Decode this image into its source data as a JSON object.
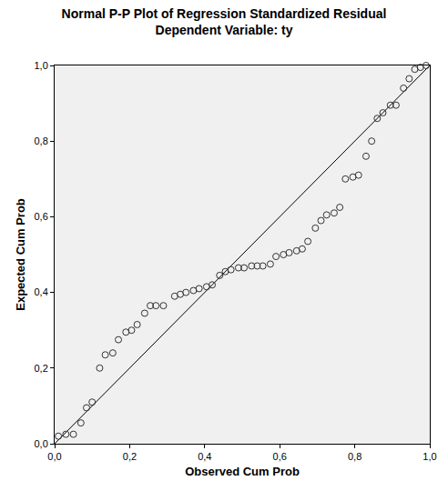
{
  "chart_data": {
    "type": "scatter",
    "title": "Normal P-P Plot of Regression Standardized Residual",
    "subtitle": "Dependent Variable: ty",
    "x_label": "Observed Cum Prob",
    "y_label": "Expected Cum Prob",
    "x": [
      0.01,
      0.03,
      0.05,
      0.07,
      0.085,
      0.1,
      0.12,
      0.135,
      0.155,
      0.17,
      0.19,
      0.205,
      0.22,
      0.24,
      0.255,
      0.27,
      0.29,
      0.32,
      0.335,
      0.35,
      0.37,
      0.385,
      0.405,
      0.42,
      0.44,
      0.455,
      0.47,
      0.49,
      0.505,
      0.525,
      0.54,
      0.555,
      0.575,
      0.59,
      0.61,
      0.625,
      0.645,
      0.66,
      0.675,
      0.695,
      0.71,
      0.725,
      0.745,
      0.76,
      0.775,
      0.795,
      0.81,
      0.83,
      0.845,
      0.86,
      0.875,
      0.895,
      0.91,
      0.93,
      0.945,
      0.96,
      0.975,
      0.99
    ],
    "values": [
      0.02,
      0.025,
      0.025,
      0.055,
      0.095,
      0.11,
      0.2,
      0.235,
      0.24,
      0.275,
      0.295,
      0.3,
      0.315,
      0.345,
      0.365,
      0.365,
      0.365,
      0.39,
      0.395,
      0.4,
      0.405,
      0.41,
      0.415,
      0.42,
      0.445,
      0.455,
      0.46,
      0.465,
      0.465,
      0.47,
      0.47,
      0.47,
      0.475,
      0.495,
      0.5,
      0.505,
      0.51,
      0.515,
      0.535,
      0.57,
      0.59,
      0.605,
      0.61,
      0.625,
      0.7,
      0.705,
      0.71,
      0.76,
      0.8,
      0.86,
      0.875,
      0.895,
      0.895,
      0.94,
      0.965,
      0.99,
      0.995,
      1.0
    ],
    "reference_line": {
      "x": [
        0,
        1
      ],
      "y": [
        0,
        1
      ]
    },
    "marker": "circle-open",
    "color": "#333333",
    "xlim": [
      0,
      1
    ],
    "ylim": [
      0,
      1
    ],
    "xticks": [
      {
        "value": 0,
        "label": "0,0"
      },
      {
        "value": 0.2,
        "label": "0,2"
      },
      {
        "value": 0.4,
        "label": "0,4"
      },
      {
        "value": 0.6,
        "label": "0,6"
      },
      {
        "value": 0.8,
        "label": "0,8"
      },
      {
        "value": 1,
        "label": "1,0"
      }
    ],
    "yticks": [
      {
        "value": 0,
        "label": "0,0"
      },
      {
        "value": 0.2,
        "label": "0,2"
      },
      {
        "value": 0.4,
        "label": "0,4"
      },
      {
        "value": 0.6,
        "label": "0,6"
      },
      {
        "value": 0.8,
        "label": "0,8"
      },
      {
        "value": 1,
        "label": "1,0"
      }
    ],
    "grid": false
  }
}
